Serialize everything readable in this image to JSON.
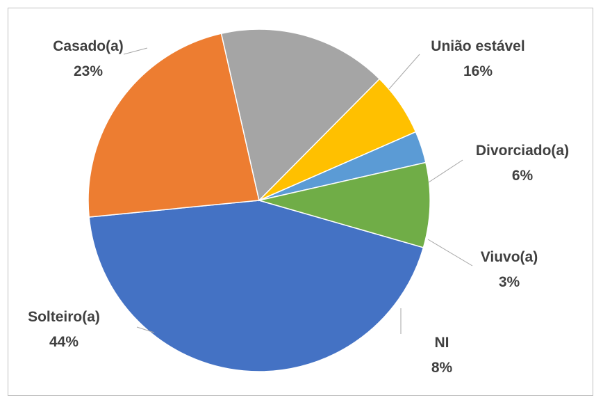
{
  "chart_data": {
    "type": "pie",
    "title": "",
    "start_angle_deg": 106,
    "direction": "clockwise",
    "slices": [
      {
        "label": "Solteiro(a)",
        "value": 44,
        "value_label": "44%",
        "color": "#4472C4"
      },
      {
        "label": "Casado(a)",
        "value": 23,
        "value_label": "23%",
        "color": "#ED7D31"
      },
      {
        "label": "União estável",
        "value": 16,
        "value_label": "16%",
        "color": "#A5A5A5"
      },
      {
        "label": "Divorciado(a)",
        "value": 6,
        "value_label": "6%",
        "color": "#FFC000"
      },
      {
        "label": "Viuvo(a)",
        "value": 3,
        "value_label": "3%",
        "color": "#5B9BD5"
      },
      {
        "label": "NI",
        "value": 8,
        "value_label": "8%",
        "color": "#70AD47"
      }
    ],
    "legend": "none",
    "data_labels": "outside-with-leader-lines"
  }
}
